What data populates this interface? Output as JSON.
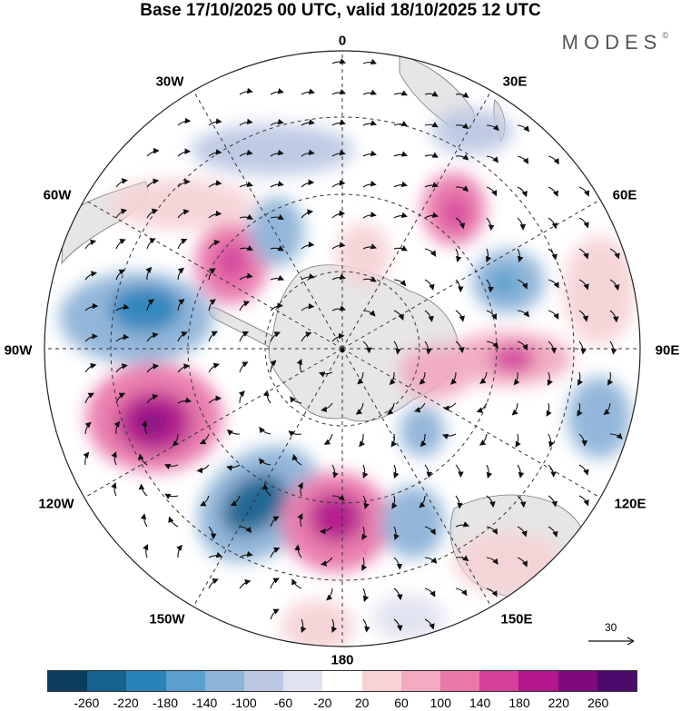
{
  "title": "Base 17/10/2025 00 UTC, valid 18/10/2025 12 UTC",
  "brand": {
    "name": "MODES",
    "mark": "©"
  },
  "longitude_labels": {
    "n0": "0",
    "e30": "30E",
    "e60": "60E",
    "e90": "90E",
    "e120": "120E",
    "e150": "150E",
    "s180": "180",
    "w150": "150W",
    "w120": "120W",
    "w90": "90W",
    "w60": "60W",
    "w30": "30W"
  },
  "reference_vector": {
    "label": "30",
    "icon": "arrow-icon"
  },
  "colorbar": {
    "ticks": [
      "-260",
      "-220",
      "-180",
      "-140",
      "-100",
      "-60",
      "-20",
      "20",
      "60",
      "100",
      "140",
      "180",
      "220",
      "260"
    ],
    "colors": [
      "#0b3d5e",
      "#15628f",
      "#2a82bb",
      "#5a9fcd",
      "#8eb3d8",
      "#bcc8e3",
      "#e1e2f0",
      "#ffffff",
      "#f6d3d6",
      "#f1aac0",
      "#e977aa",
      "#d5419a",
      "#b3168a",
      "#7e0a7c",
      "#4c0b6a"
    ]
  },
  "map": {
    "projection": "polar-stereographic-south",
    "background": "#ffffff",
    "land_color": "#e6e6e6"
  }
}
